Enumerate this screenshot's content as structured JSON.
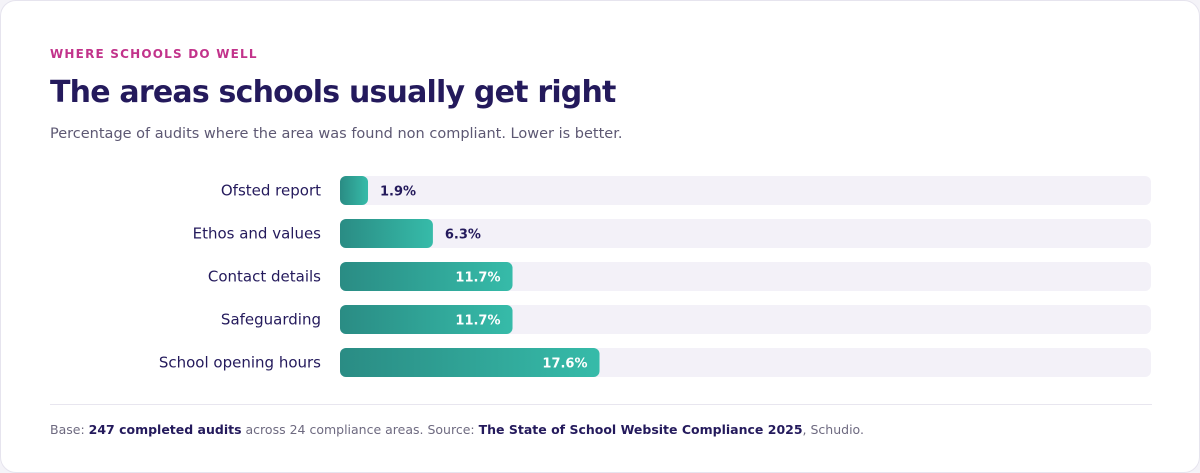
{
  "eyebrow": "WHERE SCHOOLS DO WELL",
  "title": "The areas schools usually get right",
  "subtitle": "Percentage of audits where the area was found non compliant. Lower is better.",
  "colors": {
    "bar_start": "#2a8c84",
    "bar_end": "#36bba9",
    "track": "#f3f1f8",
    "label_dark": "#241a5c",
    "label_light": "#ffffff"
  },
  "chart_data": {
    "type": "bar",
    "orientation": "horizontal",
    "title": "The areas schools usually get right",
    "categories": [
      "Ofsted report",
      "Ethos and values",
      "Contact details",
      "Safeguarding",
      "School opening hours"
    ],
    "values": [
      1.9,
      6.3,
      11.7,
      11.7,
      17.6
    ],
    "value_labels": [
      "1.9%",
      "6.3%",
      "11.7%",
      "11.7%",
      "17.6%"
    ],
    "xlim": [
      0,
      55
    ],
    "grid": false,
    "legend": "none"
  },
  "footer": {
    "prefix": "Base: ",
    "base": "247 completed audits",
    "middle": " across 24 compliance areas. Source: ",
    "source": "The State of School Website Compliance 2025",
    "suffix": ", Schudio."
  }
}
